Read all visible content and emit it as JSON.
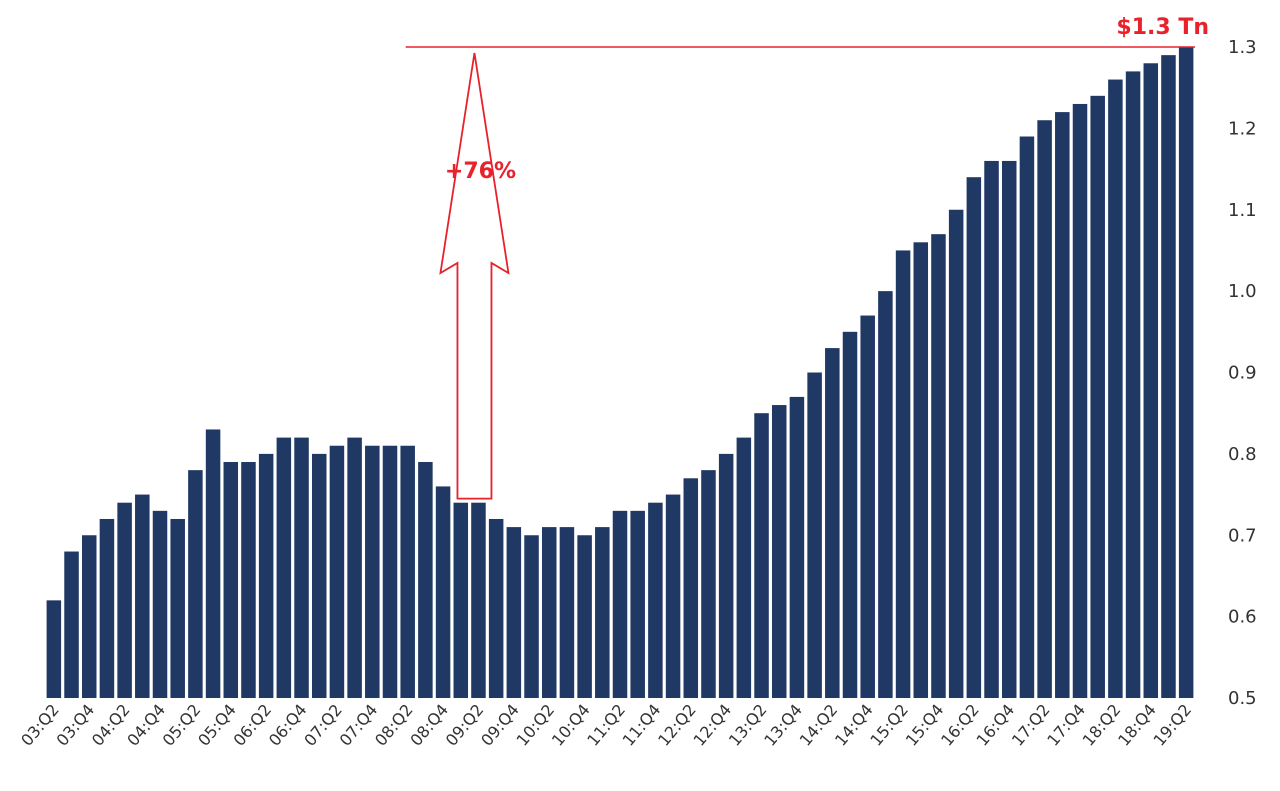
{
  "chart_data": {
    "type": "bar",
    "title": "",
    "xlabel": "",
    "ylabel": "",
    "ylim": [
      0.5,
      1.3
    ],
    "yticks": [
      "0.5",
      "0.6",
      "0.7",
      "0.8",
      "0.9",
      "1.0",
      "1.1",
      "1.2",
      "1.3"
    ],
    "y_axis_side": "right",
    "grid": false,
    "legend": "none",
    "colors": {
      "bar": "#1f3864",
      "annotation": "#e8212b"
    },
    "categories": [
      "03:Q2",
      "03:Q3",
      "03:Q4",
      "04:Q1",
      "04:Q2",
      "04:Q3",
      "04:Q4",
      "05:Q1",
      "05:Q2",
      "05:Q3",
      "05:Q4",
      "06:Q1",
      "06:Q2",
      "06:Q3",
      "06:Q4",
      "07:Q1",
      "07:Q2",
      "07:Q3",
      "07:Q4",
      "08:Q1",
      "08:Q2",
      "08:Q3",
      "08:Q4",
      "09:Q1",
      "09:Q2",
      "09:Q3",
      "09:Q4",
      "10:Q1",
      "10:Q2",
      "10:Q3",
      "10:Q4",
      "11:Q1",
      "11:Q2",
      "11:Q3",
      "11:Q4",
      "12:Q1",
      "12:Q2",
      "12:Q3",
      "12:Q4",
      "13:Q1",
      "13:Q2",
      "13:Q3",
      "13:Q4",
      "14:Q1",
      "14:Q2",
      "14:Q3",
      "14:Q4",
      "15:Q1",
      "15:Q2",
      "15:Q3",
      "15:Q4",
      "16:Q1",
      "16:Q2",
      "16:Q3",
      "16:Q4",
      "17:Q1",
      "17:Q2",
      "17:Q3",
      "17:Q4",
      "18:Q1",
      "18:Q2",
      "18:Q3",
      "18:Q4",
      "19:Q1",
      "19:Q2"
    ],
    "x_tick_labels": [
      "03:Q2",
      "03:Q4",
      "04:Q2",
      "04:Q4",
      "05:Q2",
      "05:Q4",
      "06:Q2",
      "06:Q4",
      "07:Q2",
      "07:Q4",
      "08:Q2",
      "08:Q4",
      "09:Q2",
      "09:Q4",
      "10:Q2",
      "10:Q4",
      "11:Q2",
      "11:Q4",
      "12:Q2",
      "12:Q4",
      "13:Q2",
      "13:Q4",
      "14:Q2",
      "14:Q4",
      "15:Q2",
      "15:Q4",
      "16:Q2",
      "16:Q4",
      "17:Q2",
      "17:Q4",
      "18:Q2",
      "18:Q4",
      "19:Q2"
    ],
    "values": [
      0.62,
      0.68,
      0.7,
      0.72,
      0.74,
      0.75,
      0.73,
      0.72,
      0.78,
      0.83,
      0.79,
      0.79,
      0.8,
      0.82,
      0.82,
      0.8,
      0.81,
      0.82,
      0.81,
      0.81,
      0.81,
      0.79,
      0.76,
      0.74,
      0.74,
      0.72,
      0.71,
      0.7,
      0.71,
      0.71,
      0.7,
      0.71,
      0.73,
      0.73,
      0.74,
      0.75,
      0.77,
      0.78,
      0.8,
      0.82,
      0.85,
      0.86,
      0.87,
      0.9,
      0.93,
      0.95,
      0.97,
      1.0,
      1.05,
      1.06,
      1.07,
      1.1,
      1.14,
      1.16,
      1.16,
      1.19,
      1.21,
      1.22,
      1.23,
      1.24,
      1.26,
      1.27,
      1.28,
      1.29,
      1.3
    ],
    "annotations": {
      "total_label": "$1.3 Tn",
      "growth_label": "+76%",
      "arrow_from": 0.745,
      "arrow_to": 1.3,
      "arrow_at_index": 24,
      "reference_line_from_index": 20
    }
  }
}
